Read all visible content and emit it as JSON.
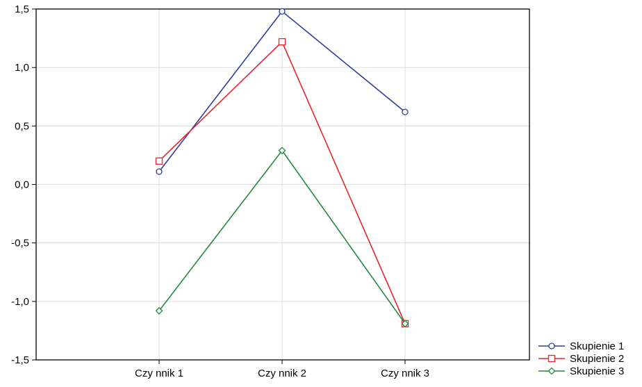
{
  "chart_data": {
    "type": "line",
    "categories": [
      "Czy nnik 1",
      "Czy nnik 2",
      "Czy nnik 3"
    ],
    "y_ticks": [
      "1,5",
      "1,0",
      "0,5",
      "0,0",
      "-0,5",
      "-1,0",
      "-1,5"
    ],
    "y_tick_values": [
      1.5,
      1.0,
      0.5,
      0.0,
      -0.5,
      -1.0,
      -1.5
    ],
    "ylim": [
      -1.5,
      1.5
    ],
    "grid": true,
    "legend_position": "bottom-right",
    "series": [
      {
        "name": "Skupienie 1",
        "values": [
          0.11,
          1.48,
          0.62
        ],
        "color": "#2c3e9a",
        "marker": "circle"
      },
      {
        "name": "Skupienie 2",
        "values": [
          0.2,
          1.22,
          -1.19
        ],
        "color": "#e8242b",
        "marker": "square"
      },
      {
        "name": "Skupienie 3",
        "values": [
          -1.08,
          0.29,
          -1.19
        ],
        "color": "#1e8a3c",
        "marker": "diamond"
      }
    ]
  }
}
